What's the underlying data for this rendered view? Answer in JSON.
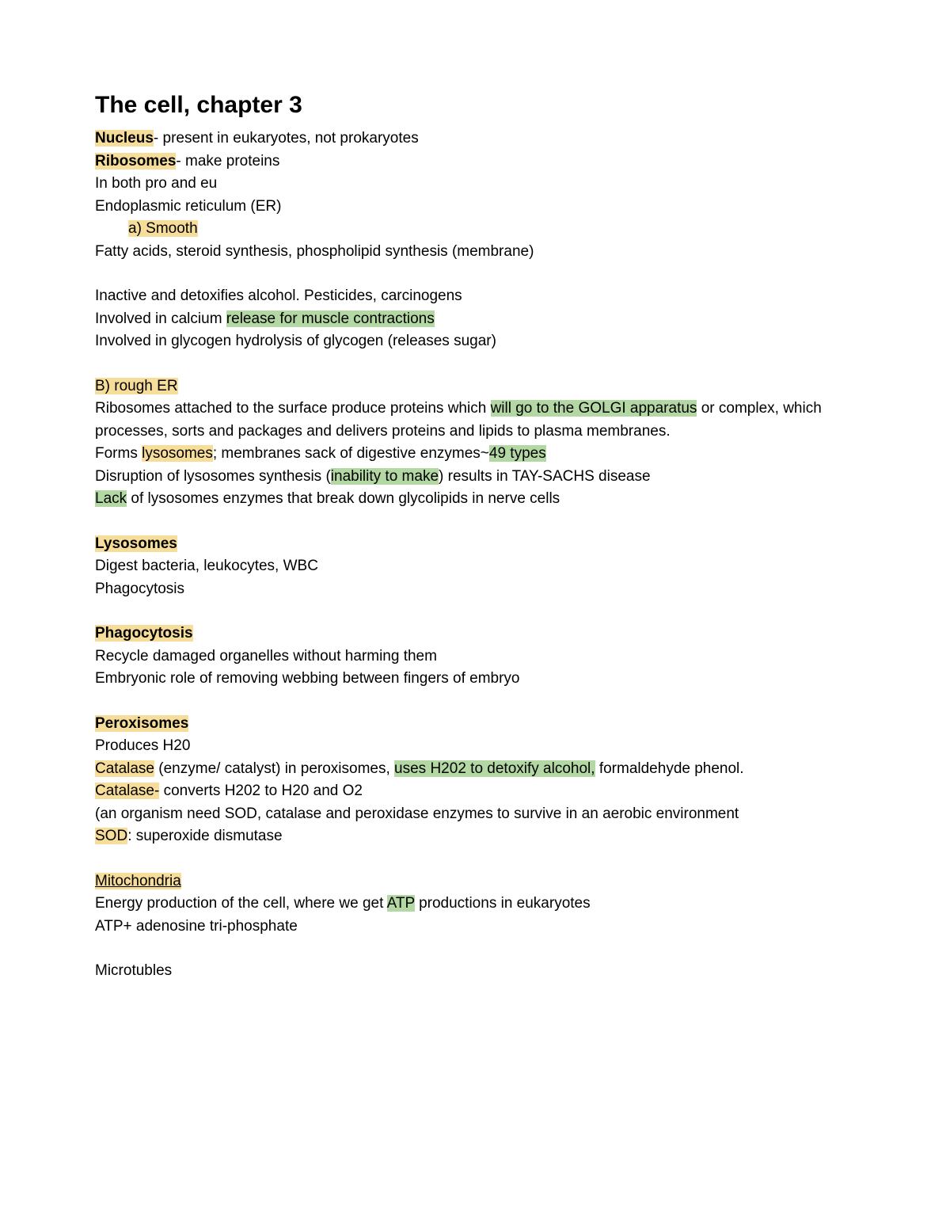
{
  "title": "The cell, chapter 3",
  "lines": {
    "nucleus_term": "Nucleus",
    "nucleus_rest": "- present in eukaryotes, not prokaryotes",
    "ribosomes_term": "Ribosomes",
    "ribosomes_rest": "- make proteins",
    "in_both": "In both pro and eu",
    "er_heading": "Endoplasmic reticulum (ER)",
    "er_a": "a)   Smooth",
    "fatty": "Fatty acids, steroid synthesis, phospholipid synthesis (membrane)",
    "inactive": "Inactive and detoxifies alcohol. Pesticides, carcinogens",
    "calcium_pre": "Involved in calcium ",
    "calcium_hl": "release for muscle contractions",
    "glycogen": "Involved in glycogen hydrolysis of glycogen (releases sugar)",
    "b_rough": "B) rough ER",
    "ribo_pre": "Ribosomes attached to the surface produce proteins which ",
    "ribo_hl": "will go to the GOLGI apparatus",
    "ribo_post": " or complex,  which processes, sorts and packages and delivers proteins and lipids to plasma membranes.",
    "forms_pre": "Forms ",
    "forms_lyso": "lysosomes",
    "forms_mid": "; membranes sack of digestive enzymes~",
    "forms_49": "49 types",
    "disruption_pre": "Disruption of lysosomes synthesis (",
    "disruption_hl": "inability to make",
    "disruption_post": ") results in TAY-SACHS disease",
    "lack_hl": "Lack",
    "lack_post": " of lysosomes enzymes that break down glycolipids in nerve cells",
    "lysosomes_heading": "Lysosomes",
    "digest": "Digest bacteria, leukocytes, WBC",
    "phago1": "Phagocytosis",
    "phago_heading": "Phagocytosis",
    "recycle": "Recycle damaged organelles without harming them",
    "embryonic": "Embryonic role of removing webbing between fingers of embryo",
    "peroxisomes_heading": "Peroxisomes",
    "produces": "Produces H20",
    "catalase1_term": "Catalase",
    "catalase1_mid": " (enzyme/ catalyst) in peroxisomes, ",
    "catalase1_hl": "uses H202 to detoxify alcohol,",
    "catalase1_post": " formaldehyde phenol.",
    "catalase2_term": "Catalase-",
    "catalase2_post": " converts H202 to H20 and O2",
    "organism": "(an organism need SOD, catalase and peroxidase enzymes to survive in an aerobic environment",
    "sod_term": "SOD",
    "sod_post": ": superoxide dismutase",
    "mito_heading": "Mitochondria",
    "energy_pre": "Energy production of the cell, where we get ",
    "energy_atp": "ATP",
    "energy_post": " productions in eukaryotes",
    "atp_def": "ATP+ adenosine tri-phosphate",
    "microtubles": "Microtubles"
  },
  "colors": {
    "yellow": "#f7dd9a",
    "green": "#b4d8a4",
    "text": "#000000",
    "bg": "#ffffff"
  },
  "typography": {
    "title_fontsize": 30,
    "body_fontsize": 19,
    "font_family": "Arial"
  }
}
